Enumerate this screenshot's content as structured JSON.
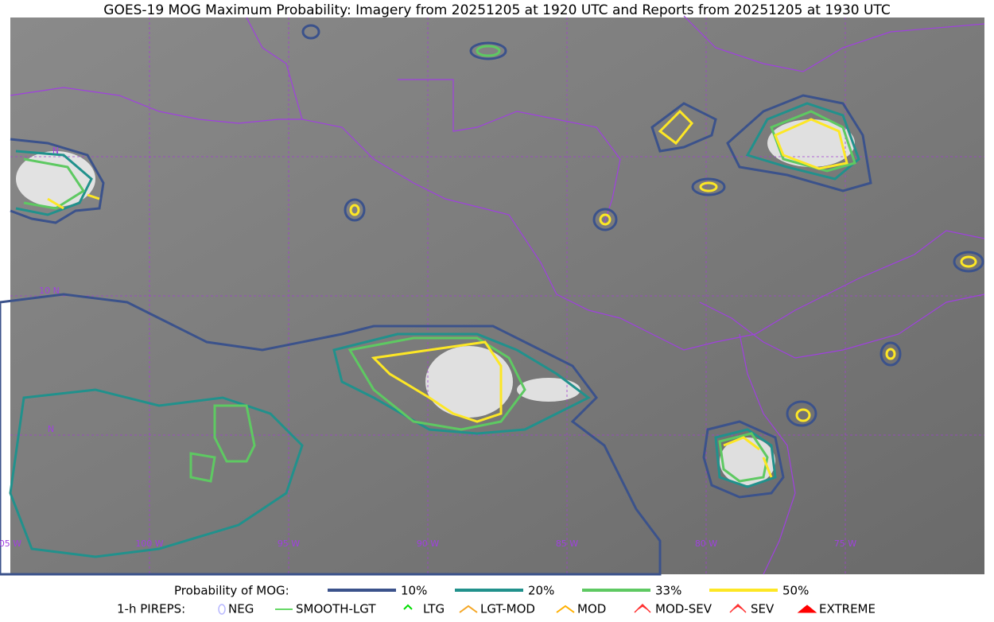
{
  "title": "GOES-19 MOG Maximum Probability: Imagery from 20251205 at 1920 UTC and Reports from 20251205 at 1930 UTC",
  "map": {
    "lat_labels": [
      "N",
      "10 N",
      "N"
    ],
    "lon_labels": [
      "05 W",
      "100 W",
      "95 W",
      "90 W",
      "85 W",
      "80 W",
      "75 W"
    ]
  },
  "legend": {
    "probability": {
      "label": "Probability of MOG:",
      "items": [
        {
          "label": "10%",
          "color": "#3b528b"
        },
        {
          "label": "20%",
          "color": "#21918c"
        },
        {
          "label": "33%",
          "color": "#5ec962"
        },
        {
          "label": "50%",
          "color": "#fde725"
        }
      ]
    },
    "pireps": {
      "label": "1-h PIREPS:",
      "items": [
        {
          "label": "NEG",
          "color": "#b8b8ff"
        },
        {
          "label": "SMOOTH-LGT",
          "color": "#33cc33"
        },
        {
          "label": "LTG",
          "color": "#00dd00"
        },
        {
          "label": "LGT-MOD",
          "color": "#f5a623"
        },
        {
          "label": "MOD",
          "color": "#ffb000"
        },
        {
          "label": "MOD-SEV",
          "color": "#ff3030"
        },
        {
          "label": "SEV",
          "color": "#ff3030"
        },
        {
          "label": "EXTREME",
          "color": "#ff0000"
        }
      ]
    }
  }
}
